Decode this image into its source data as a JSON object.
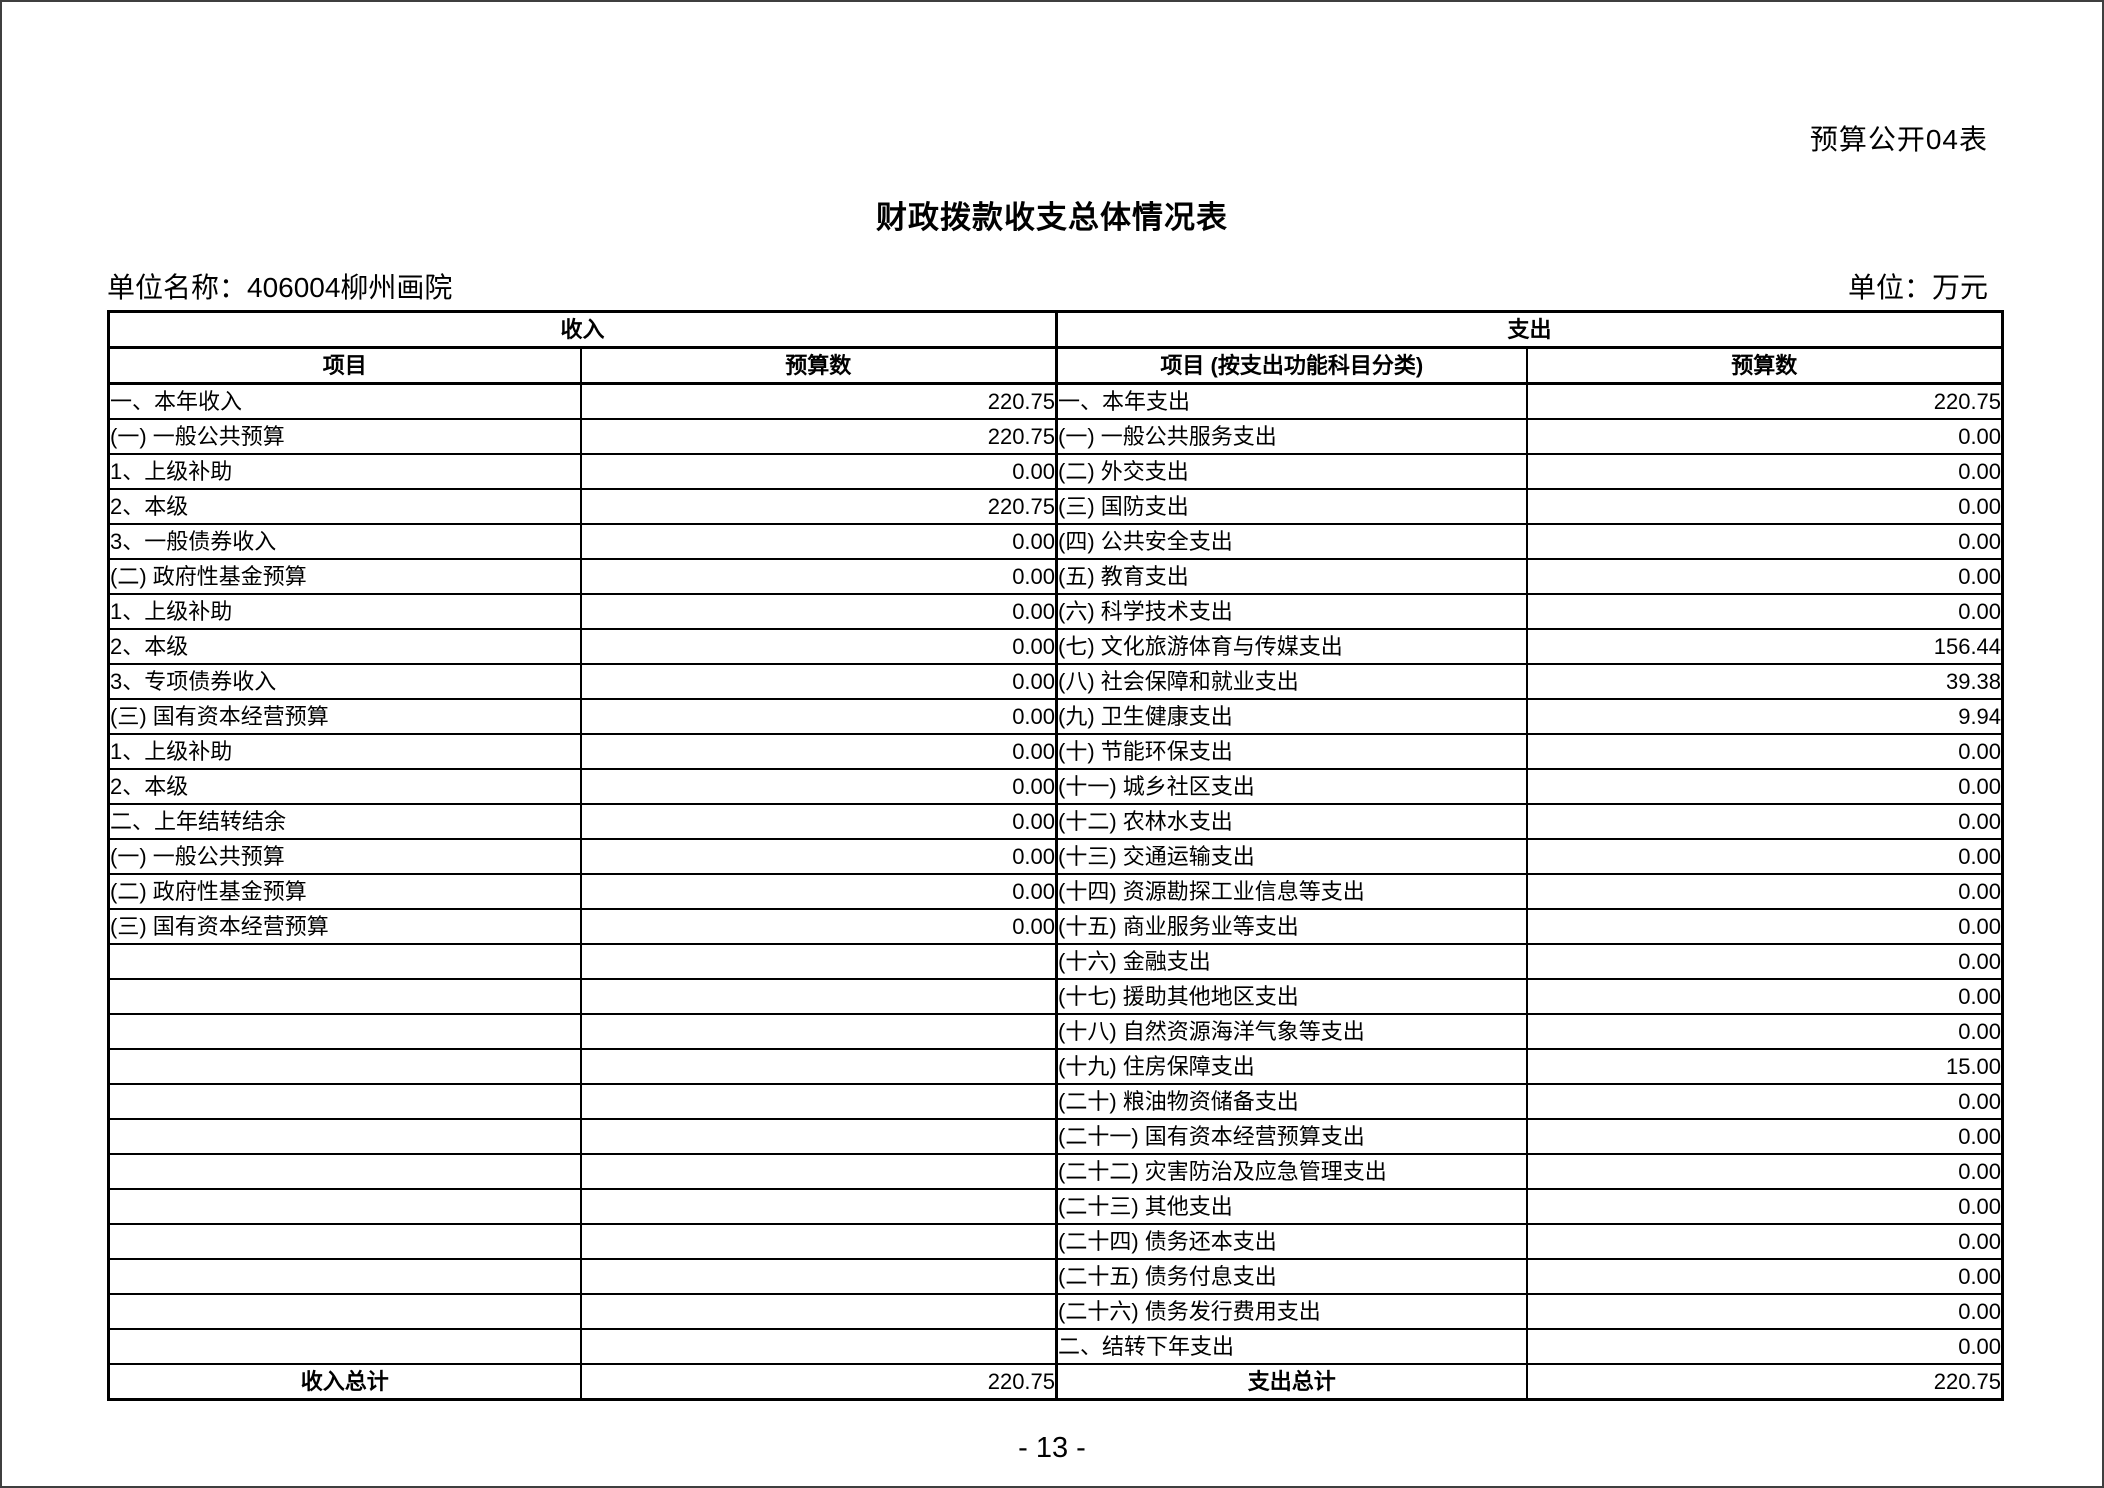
{
  "page": {
    "corner_label": "预算公开04表",
    "title": "财政拨款收支总体情况表",
    "unit_name": "单位名称：406004柳州画院",
    "unit_label": "单位：万元",
    "page_number": "- 13 -"
  },
  "table": {
    "income_header": "收入",
    "expense_header": "支出",
    "income_col_item": "项目",
    "income_col_value": "预算数",
    "expense_col_item": "项目 (按支出功能科目分类)",
    "expense_col_value": "预算数",
    "income_rows": [
      {
        "label": "一、本年收入",
        "indent": 0,
        "value": "220.75"
      },
      {
        "label": "(一) 一般公共预算",
        "indent": 1,
        "value": "220.75"
      },
      {
        "label": "1、上级补助",
        "indent": 2,
        "value": "0.00"
      },
      {
        "label": "2、本级",
        "indent": 2,
        "value": "220.75"
      },
      {
        "label": "3、一般债券收入",
        "indent": 2,
        "value": "0.00"
      },
      {
        "label": "(二) 政府性基金预算",
        "indent": 1,
        "value": "0.00"
      },
      {
        "label": "1、上级补助",
        "indent": 2,
        "value": "0.00"
      },
      {
        "label": "2、本级",
        "indent": 2,
        "value": "0.00"
      },
      {
        "label": "3、专项债券收入",
        "indent": 2,
        "value": "0.00"
      },
      {
        "label": "(三) 国有资本经营预算",
        "indent": 1,
        "value": "0.00"
      },
      {
        "label": "1、上级补助",
        "indent": 2,
        "value": "0.00"
      },
      {
        "label": "2、本级",
        "indent": 2,
        "value": "0.00"
      },
      {
        "label": "二、上年结转结余",
        "indent": 0,
        "value": "0.00"
      },
      {
        "label": "(一) 一般公共预算",
        "indent": 1,
        "value": "0.00"
      },
      {
        "label": "(二) 政府性基金预算",
        "indent": 1,
        "value": "0.00"
      },
      {
        "label": "(三) 国有资本经营预算",
        "indent": 1,
        "value": "0.00"
      },
      {
        "label": "",
        "indent": 0,
        "value": ""
      },
      {
        "label": "",
        "indent": 0,
        "value": ""
      },
      {
        "label": "",
        "indent": 0,
        "value": ""
      },
      {
        "label": "",
        "indent": 0,
        "value": ""
      },
      {
        "label": "",
        "indent": 0,
        "value": ""
      },
      {
        "label": "",
        "indent": 0,
        "value": ""
      },
      {
        "label": "",
        "indent": 0,
        "value": ""
      },
      {
        "label": "",
        "indent": 0,
        "value": ""
      },
      {
        "label": "",
        "indent": 0,
        "value": ""
      },
      {
        "label": "",
        "indent": 0,
        "value": ""
      },
      {
        "label": "",
        "indent": 0,
        "value": ""
      },
      {
        "label": "",
        "indent": 0,
        "value": ""
      }
    ],
    "expense_rows": [
      {
        "label": "一、本年支出",
        "indent": 0,
        "value": "220.75"
      },
      {
        "label": "(一) 一般公共服务支出",
        "indent": 1,
        "value": "0.00"
      },
      {
        "label": "(二) 外交支出",
        "indent": 1,
        "value": "0.00"
      },
      {
        "label": "(三) 国防支出",
        "indent": 1,
        "value": "0.00"
      },
      {
        "label": "(四) 公共安全支出",
        "indent": 1,
        "value": "0.00"
      },
      {
        "label": "(五) 教育支出",
        "indent": 1,
        "value": "0.00"
      },
      {
        "label": "(六) 科学技术支出",
        "indent": 1,
        "value": "0.00"
      },
      {
        "label": "(七) 文化旅游体育与传媒支出",
        "indent": 1,
        "value": "156.44"
      },
      {
        "label": "(八) 社会保障和就业支出",
        "indent": 1,
        "value": "39.38"
      },
      {
        "label": "(九) 卫生健康支出",
        "indent": 1,
        "value": "9.94"
      },
      {
        "label": "(十) 节能环保支出",
        "indent": 1,
        "value": "0.00"
      },
      {
        "label": "(十一) 城乡社区支出",
        "indent": 1,
        "value": "0.00"
      },
      {
        "label": "(十二) 农林水支出",
        "indent": 1,
        "value": "0.00"
      },
      {
        "label": "(十三) 交通运输支出",
        "indent": 1,
        "value": "0.00"
      },
      {
        "label": "(十四) 资源勘探工业信息等支出",
        "indent": 1,
        "value": "0.00"
      },
      {
        "label": "(十五) 商业服务业等支出",
        "indent": 1,
        "value": "0.00"
      },
      {
        "label": "(十六) 金融支出",
        "indent": 1,
        "value": "0.00"
      },
      {
        "label": "(十七) 援助其他地区支出",
        "indent": 1,
        "value": "0.00"
      },
      {
        "label": "(十八) 自然资源海洋气象等支出",
        "indent": 1,
        "value": "0.00"
      },
      {
        "label": "(十九) 住房保障支出",
        "indent": 1,
        "value": "15.00"
      },
      {
        "label": "(二十) 粮油物资储备支出",
        "indent": 1,
        "value": "0.00"
      },
      {
        "label": "(二十一) 国有资本经营预算支出",
        "indent": 1,
        "value": "0.00"
      },
      {
        "label": "(二十二) 灾害防治及应急管理支出",
        "indent": 1,
        "value": "0.00"
      },
      {
        "label": "(二十三) 其他支出",
        "indent": 1,
        "value": "0.00"
      },
      {
        "label": "(二十四) 债务还本支出",
        "indent": 1,
        "value": "0.00"
      },
      {
        "label": "(二十五) 债务付息支出",
        "indent": 1,
        "value": "0.00"
      },
      {
        "label": "(二十六) 债务发行费用支出",
        "indent": 1,
        "value": "0.00"
      },
      {
        "label": "二、结转下年支出",
        "indent": 0,
        "value": "0.00"
      }
    ],
    "income_total_label": "收入总计",
    "income_total": "220.75",
    "expense_total_label": "支出总计",
    "expense_total": "220.75"
  }
}
